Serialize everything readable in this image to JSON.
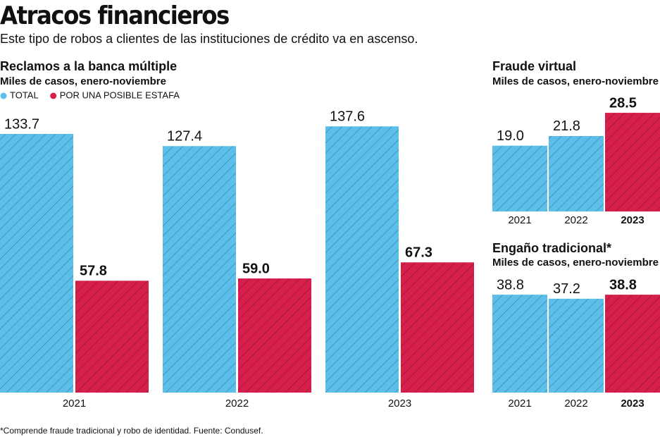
{
  "header": {
    "title": "Atracos financieros",
    "subtitle": "Este tipo de robos a clientes de las instituciones de crédito va en ascenso."
  },
  "footnote": "*Comprende fraude tradicional y robo de identidad. Fuente: Condusef.",
  "chart_data": [
    {
      "type": "bar",
      "title": "Reclamos a la banca múltiple",
      "subtitle": "Miles de casos, enero-noviembre",
      "categories": [
        "2021",
        "2022",
        "2023"
      ],
      "series": [
        {
          "name": "TOTAL",
          "color": "#5bbfea",
          "values": [
            133.7,
            127.4,
            137.6
          ],
          "value_labels": [
            "133.7",
            "127.4",
            "137.6"
          ]
        },
        {
          "name": "POR UNA POSIBLE ESTAFA",
          "color": "#d61f4b",
          "values": [
            57.8,
            59.0,
            67.3
          ],
          "value_labels": [
            "57.8",
            "59.0",
            "67.3"
          ]
        }
      ],
      "legend": "top-left"
    },
    {
      "type": "bar",
      "title": "Fraude virtual",
      "subtitle": "Miles de casos, enero-noviembre",
      "categories": [
        "2021",
        "2022",
        "2023"
      ],
      "values": [
        19.0,
        21.8,
        28.5
      ],
      "value_labels": [
        "19.0",
        "21.8",
        "28.5"
      ],
      "colors": [
        "#5bbfea",
        "#5bbfea",
        "#d61f4b"
      ]
    },
    {
      "type": "bar",
      "title": "Engaño tradicional*",
      "subtitle": "Miles de casos, enero-noviembre",
      "categories": [
        "2021",
        "2022",
        "2023"
      ],
      "values": [
        38.8,
        37.2,
        38.8
      ],
      "value_labels": [
        "38.8",
        "37.2",
        "38.8"
      ],
      "colors": [
        "#5bbfea",
        "#5bbfea",
        "#d61f4b"
      ]
    }
  ]
}
